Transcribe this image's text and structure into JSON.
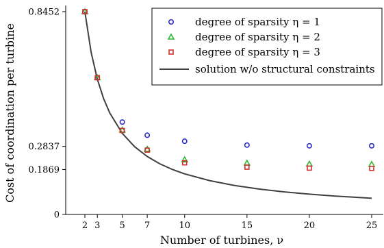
{
  "chart_data": {
    "type": "scatter",
    "title": "",
    "xlabel": "Number of turbines, ν",
    "ylabel": "Cost of coordination per turbine",
    "xlim": [
      0,
      26
    ],
    "ylim": [
      0,
      0.8452
    ],
    "x_ticks": [
      2,
      3,
      5,
      7,
      10,
      15,
      20,
      25
    ],
    "y_ticks": [
      0,
      0.1869,
      0.2837,
      0.8452
    ],
    "y_tick_labels": [
      "0",
      "0.1869",
      "0.2837",
      "0.8452"
    ],
    "legend_position": "top-right",
    "grid": false,
    "series": [
      {
        "name": "degree of sparsity η = 1",
        "marker": "circle",
        "color": "#2b2bcc",
        "x": [
          2,
          3,
          5,
          7,
          10,
          15,
          20,
          25
        ],
        "y": [
          0.8452,
          0.57,
          0.385,
          0.33,
          0.305,
          0.289,
          0.286,
          0.286
        ]
      },
      {
        "name": "degree of sparsity η = 2",
        "marker": "triangle",
        "color": "#2fb82f",
        "x": [
          2,
          3,
          5,
          7,
          10,
          15,
          20,
          25
        ],
        "y": [
          0.8452,
          0.57,
          0.352,
          0.272,
          0.228,
          0.214,
          0.21,
          0.209
        ]
      },
      {
        "name": "degree of sparsity η = 3",
        "marker": "square",
        "color": "#d62e2e",
        "x": [
          2,
          3,
          5,
          7,
          10,
          15,
          20,
          25
        ],
        "y": [
          0.8452,
          0.57,
          0.35,
          0.268,
          0.215,
          0.197,
          0.193,
          0.192
        ]
      },
      {
        "name": "solution w/o structural constraints",
        "marker": "line",
        "color": "#404040",
        "formula_note": "",
        "x": [
          2,
          2.5,
          3,
          3.5,
          4,
          5,
          6,
          7,
          8,
          9,
          10,
          12,
          14,
          16,
          18,
          20,
          22,
          25
        ],
        "y": [
          0.8452,
          0.676,
          0.5635,
          0.483,
          0.4226,
          0.338,
          0.2817,
          0.2415,
          0.2113,
          0.1878,
          0.169,
          0.1409,
          0.1207,
          0.1057,
          0.0939,
          0.0845,
          0.0768,
          0.0676
        ]
      }
    ]
  }
}
